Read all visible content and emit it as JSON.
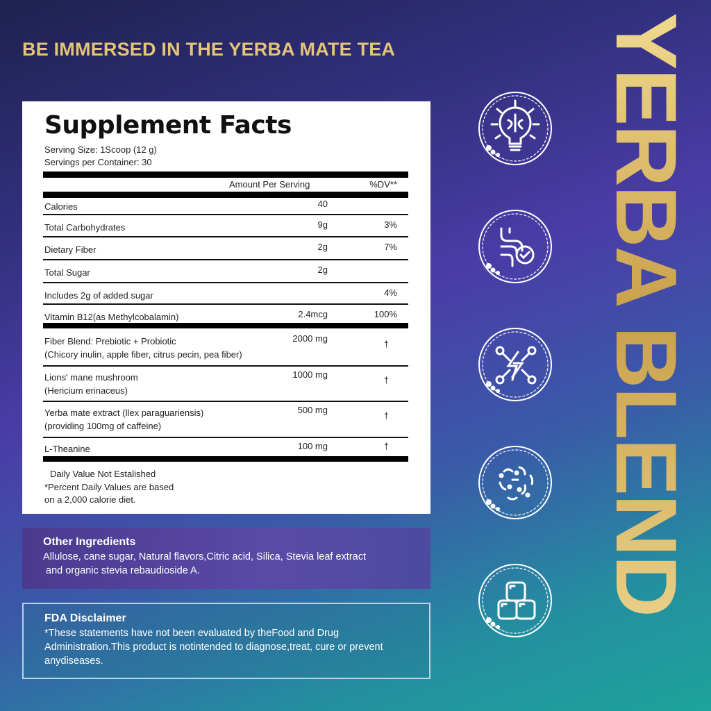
{
  "headline": "BE IMMERSED IN THE YERBA MATE TEA",
  "vertical_title": "YERBA BLEND",
  "facts": {
    "title": "Supplement Facts",
    "serving_size": "Serving Size: 1Scoop (12 g)",
    "servings_per_container": "Servings per Container: 30",
    "col_amount": "Amount Per Serving",
    "col_dv": "%DV**",
    "rows": [
      {
        "name": "Calories",
        "amount": "40",
        "dv": ""
      },
      {
        "name": "Total Carbohydrates",
        "amount": "9g",
        "dv": "3%"
      },
      {
        "name": "Dietary Fiber",
        "amount": "2g",
        "dv": "7%"
      },
      {
        "name": "Total Sugar",
        "amount": "2g",
        "dv": ""
      },
      {
        "name": "Includes 2g of added sugar",
        "amount": "",
        "dv": "4%"
      },
      {
        "name": "Vitamin B12(as Methylcobalamin)",
        "amount": "2.4mcg",
        "dv": "100%"
      },
      {
        "name": "Fiber Blend: Prebiotic + Probiotic",
        "sub": "(Chicory inulin, apple fiber, citrus pecin, pea fiber)",
        "amount": "2000 mg",
        "dv": "†"
      },
      {
        "name": "Lions' mane mushroom",
        "sub": "(Hericium erinaceus)",
        "amount": "1000 mg",
        "dv": "†"
      },
      {
        "name": "Yerba mate extract (llex paraguariensis)",
        "sub": "(providing 100mg of caffeine)",
        "amount": "500 mg",
        "dv": "†"
      },
      {
        "name": "L-Theanine",
        "amount": "100 mg",
        "dv": "†"
      }
    ],
    "footnote1": "Daily Value Not Estalished",
    "footnote2": "*Percent Daily Values are based",
    "footnote3": "on a 2,000 calorie diet."
  },
  "other": {
    "title": "Other Ingredients",
    "line1": "Allulose, cane sugar, Natural flavors,Citric acid, Silica, Stevia leaf extract",
    "line2": " and organic stevia rebaudioside A."
  },
  "fda": {
    "title": "FDA Disclaimer",
    "text": "*These statements have not been evaluated by theFood and Drug Administration.This product is notintended to diagnose,treat, cure or prevent anydiseases."
  },
  "icons": [
    "brain-lightbulb-icon",
    "gut-health-icon",
    "energy-network-icon",
    "probiotic-bacteria-icon",
    "sugar-cubes-icon"
  ],
  "colors": {
    "gold": "#e3c57a",
    "panel": "#ffffff",
    "teal": "#1ea39a",
    "purple": "#4a3ca6"
  }
}
